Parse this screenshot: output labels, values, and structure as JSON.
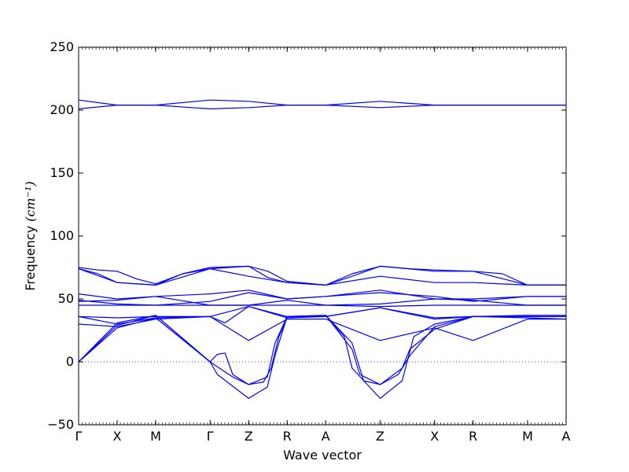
{
  "chart_data": {
    "type": "line",
    "title": "",
    "xlabel": "Wave vector",
    "ylabel": "Frequency ",
    "ylabel_unit": "(cm⁻¹)",
    "ylim": [
      -50,
      250
    ],
    "yticks": [
      -50,
      0,
      50,
      100,
      150,
      200,
      250
    ],
    "grid": false,
    "legend": "none",
    "line_color": "#0000ff",
    "zero_line": {
      "y": 0,
      "style": "dotted",
      "color": "#0000ff"
    },
    "high_symmetry_points": [
      {
        "label": "Γ",
        "x": 0.0
      },
      {
        "label": "X",
        "x": 0.5
      },
      {
        "label": "M",
        "x": 1.0
      },
      {
        "label": "Γ",
        "x": 1.707
      },
      {
        "label": "Z",
        "x": 2.207
      },
      {
        "label": "R",
        "x": 2.707
      },
      {
        "label": "A",
        "x": 3.207
      },
      {
        "label": "Z",
        "x": 3.914
      },
      {
        "label": "X",
        "x": 4.621
      },
      {
        "label": "R",
        "x": 5.121
      },
      {
        "label": "M",
        "x": 5.828
      },
      {
        "label": "A",
        "x": 6.328
      }
    ],
    "xlim": [
      0,
      6.328
    ],
    "series": [
      {
        "values": [
          [
            0,
            208
          ],
          [
            0.5,
            204
          ],
          [
            1.0,
            204
          ],
          [
            1.707,
            208
          ],
          [
            2.207,
            207
          ],
          [
            2.707,
            204
          ],
          [
            3.207,
            204
          ],
          [
            3.914,
            207
          ],
          [
            4.621,
            204
          ],
          [
            5.121,
            204
          ],
          [
            5.828,
            204
          ],
          [
            6.328,
            204
          ]
        ]
      },
      {
        "values": [
          [
            0,
            201
          ],
          [
            0.5,
            204
          ],
          [
            1.0,
            204
          ],
          [
            1.707,
            201
          ],
          [
            2.207,
            202
          ],
          [
            2.707,
            204
          ],
          [
            3.207,
            204
          ],
          [
            3.914,
            202
          ],
          [
            4.621,
            204
          ],
          [
            5.121,
            204
          ],
          [
            5.828,
            204
          ],
          [
            6.328,
            204
          ]
        ]
      },
      {
        "values": [
          [
            0,
            75
          ],
          [
            0.25,
            73
          ],
          [
            0.5,
            72
          ],
          [
            0.75,
            66
          ],
          [
            1.0,
            62
          ],
          [
            1.35,
            70
          ],
          [
            1.707,
            75
          ],
          [
            2.207,
            76
          ],
          [
            2.457,
            72
          ],
          [
            2.707,
            64
          ],
          [
            3.207,
            61
          ],
          [
            3.55,
            70
          ],
          [
            3.914,
            76
          ],
          [
            4.3,
            74
          ],
          [
            4.621,
            73
          ],
          [
            5.121,
            72
          ],
          [
            5.5,
            70
          ],
          [
            5.828,
            61
          ],
          [
            6.328,
            61
          ]
        ]
      },
      {
        "values": [
          [
            0,
            74
          ],
          [
            0.25,
            70
          ],
          [
            0.5,
            63
          ],
          [
            1.0,
            61
          ],
          [
            1.35,
            70
          ],
          [
            1.707,
            74
          ],
          [
            2.207,
            76
          ],
          [
            2.457,
            67
          ],
          [
            2.707,
            63
          ],
          [
            3.207,
            61
          ],
          [
            3.55,
            68
          ],
          [
            3.914,
            76
          ],
          [
            4.621,
            72
          ],
          [
            5.121,
            72
          ],
          [
            5.828,
            61
          ],
          [
            6.328,
            61
          ]
        ]
      },
      {
        "values": [
          [
            0,
            74
          ],
          [
            0.5,
            63
          ],
          [
            1.0,
            61
          ],
          [
            1.707,
            74
          ],
          [
            2.207,
            68
          ],
          [
            2.707,
            63
          ],
          [
            3.207,
            61
          ],
          [
            3.914,
            68
          ],
          [
            4.621,
            63
          ],
          [
            5.121,
            63
          ],
          [
            5.828,
            61
          ],
          [
            6.328,
            61
          ]
        ]
      },
      {
        "values": [
          [
            0,
            54
          ],
          [
            0.5,
            50
          ],
          [
            1.0,
            52
          ],
          [
            1.707,
            54
          ],
          [
            2.207,
            57
          ],
          [
            2.707,
            50
          ],
          [
            3.207,
            52
          ],
          [
            3.914,
            57
          ],
          [
            4.621,
            50
          ],
          [
            5.121,
            50
          ],
          [
            5.828,
            52
          ],
          [
            6.328,
            52
          ]
        ]
      },
      {
        "values": [
          [
            0,
            49
          ],
          [
            0.5,
            46
          ],
          [
            1.0,
            45
          ],
          [
            1.707,
            48
          ],
          [
            2.207,
            55
          ],
          [
            2.707,
            50
          ],
          [
            3.207,
            52
          ],
          [
            3.914,
            55
          ],
          [
            4.621,
            52
          ],
          [
            5.121,
            48
          ],
          [
            5.828,
            52
          ],
          [
            6.328,
            52
          ]
        ]
      },
      {
        "values": [
          [
            0,
            48
          ],
          [
            0.5,
            49
          ],
          [
            1.0,
            52
          ],
          [
            1.707,
            45
          ],
          [
            2.207,
            45
          ],
          [
            2.707,
            45
          ],
          [
            3.207,
            45
          ],
          [
            3.914,
            44
          ],
          [
            4.621,
            45
          ],
          [
            5.121,
            45
          ],
          [
            5.828,
            45
          ],
          [
            6.328,
            45
          ]
        ]
      },
      {
        "values": [
          [
            0,
            45
          ],
          [
            0.5,
            45
          ],
          [
            1.0,
            45
          ],
          [
            1.707,
            45
          ],
          [
            2.207,
            45
          ],
          [
            2.707,
            49
          ],
          [
            3.207,
            45
          ],
          [
            3.914,
            46
          ],
          [
            4.621,
            50
          ],
          [
            5.121,
            49
          ],
          [
            5.828,
            45
          ],
          [
            6.328,
            45
          ]
        ]
      },
      {
        "values": [
          [
            0,
            36
          ],
          [
            0.5,
            35
          ],
          [
            1.0,
            36
          ],
          [
            1.707,
            36
          ],
          [
            2.207,
            44
          ],
          [
            2.707,
            36
          ],
          [
            3.207,
            36
          ],
          [
            3.914,
            43
          ],
          [
            4.621,
            35
          ],
          [
            5.121,
            36
          ],
          [
            5.828,
            36
          ],
          [
            6.328,
            36
          ]
        ]
      },
      {
        "values": [
          [
            0,
            36
          ],
          [
            0.5,
            30
          ],
          [
            1.0,
            35
          ],
          [
            1.707,
            36
          ],
          [
            1.9,
            31
          ],
          [
            2.207,
            44
          ],
          [
            2.707,
            35
          ],
          [
            3.207,
            36
          ],
          [
            3.914,
            43
          ],
          [
            4.3,
            38
          ],
          [
            4.621,
            34
          ],
          [
            5.121,
            36
          ],
          [
            5.828,
            35
          ],
          [
            6.328,
            34
          ]
        ]
      },
      {
        "values": [
          [
            0,
            30
          ],
          [
            0.5,
            28
          ],
          [
            1.0,
            34
          ],
          [
            1.707,
            36
          ],
          [
            2.207,
            17
          ],
          [
            2.707,
            34
          ],
          [
            3.207,
            34
          ],
          [
            3.914,
            17
          ],
          [
            4.621,
            27
          ],
          [
            5.121,
            17
          ],
          [
            5.828,
            34
          ],
          [
            6.328,
            34
          ]
        ]
      },
      {
        "values": [
          [
            0,
            0
          ],
          [
            0.5,
            27
          ],
          [
            1.0,
            35
          ],
          [
            1.707,
            0
          ],
          [
            1.8,
            6
          ],
          [
            1.9,
            7
          ],
          [
            2.0,
            -10
          ],
          [
            2.207,
            -18
          ],
          [
            2.45,
            -12
          ],
          [
            2.55,
            15
          ],
          [
            2.707,
            36
          ],
          [
            3.207,
            37
          ],
          [
            3.55,
            10
          ],
          [
            3.65,
            -10
          ],
          [
            3.914,
            -18
          ],
          [
            4.2,
            -5
          ],
          [
            4.3,
            10
          ],
          [
            4.621,
            26
          ],
          [
            5.121,
            36
          ],
          [
            5.828,
            36
          ],
          [
            6.328,
            36
          ]
        ]
      },
      {
        "values": [
          [
            0,
            0
          ],
          [
            0.5,
            29
          ],
          [
            1.0,
            37
          ],
          [
            1.707,
            0
          ],
          [
            2.0,
            -12
          ],
          [
            2.207,
            -18
          ],
          [
            2.4,
            -16
          ],
          [
            2.5,
            -5
          ],
          [
            2.6,
            20
          ],
          [
            2.707,
            35
          ],
          [
            3.207,
            37
          ],
          [
            3.55,
            15
          ],
          [
            3.7,
            -15
          ],
          [
            3.914,
            -18
          ],
          [
            4.15,
            -10
          ],
          [
            4.3,
            5
          ],
          [
            4.621,
            28
          ],
          [
            5.121,
            36
          ],
          [
            5.828,
            36
          ],
          [
            6.328,
            36
          ]
        ]
      },
      {
        "values": [
          [
            0,
            0
          ],
          [
            0.5,
            31
          ],
          [
            1.0,
            37
          ],
          [
            1.707,
            0
          ],
          [
            1.8,
            -10
          ],
          [
            2.207,
            -29
          ],
          [
            2.45,
            -20
          ],
          [
            2.55,
            5
          ],
          [
            2.707,
            36
          ],
          [
            3.207,
            37
          ],
          [
            3.45,
            20
          ],
          [
            3.55,
            -5
          ],
          [
            3.914,
            -29
          ],
          [
            4.2,
            -15
          ],
          [
            4.35,
            20
          ],
          [
            4.621,
            30
          ],
          [
            5.121,
            36
          ],
          [
            5.828,
            37
          ],
          [
            6.328,
            37
          ]
        ]
      }
    ]
  }
}
